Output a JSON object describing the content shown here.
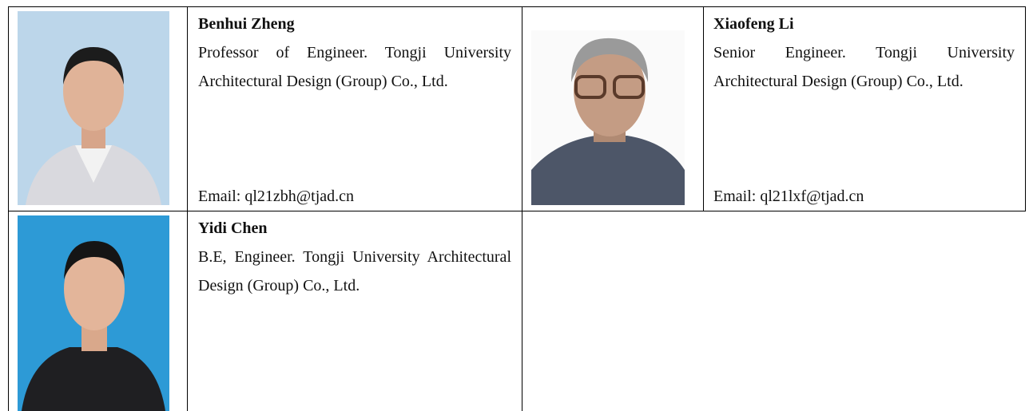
{
  "people": [
    {
      "name": "Benhui Zheng",
      "description": "Professor of Engineer. Tongji University Architectural Design (Group) Co., Ltd.",
      "email": "Email: ql21zbh@tjad.cn"
    },
    {
      "name": "Xiaofeng Li",
      "description": "Senior Engineer. Tongji University Architectural Design (Group) Co., Ltd.",
      "email": "Email: ql21lxf@tjad.cn"
    },
    {
      "name": "Yidi Chen",
      "description": "B.E, Engineer. Tongji University Architectural Design (Group) Co., Ltd."
    }
  ]
}
